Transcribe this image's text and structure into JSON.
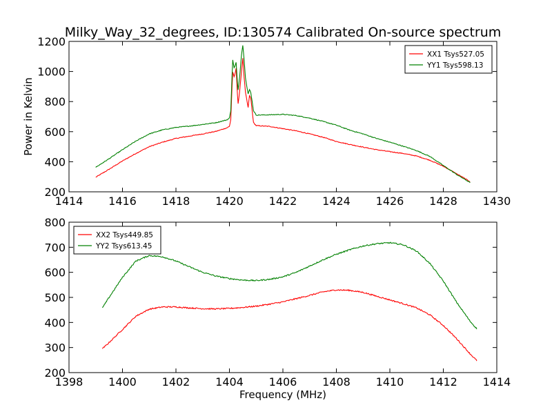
{
  "title": "Milky_Way_32_degrees, ID:130574 Calibrated On-source spectrum",
  "chart_data": [
    {
      "type": "line",
      "ylabel": "Power in Kelvin",
      "xlabel": "",
      "xlim": [
        1414,
        1430
      ],
      "ylim": [
        200,
        1200
      ],
      "xticks": [
        "1414",
        "1416",
        "1418",
        "1420",
        "1422",
        "1424",
        "1426",
        "1428",
        "1430"
      ],
      "yticks": [
        "200",
        "400",
        "600",
        "800",
        "1000",
        "1200"
      ],
      "legend_position": "upper-right",
      "series": [
        {
          "name": "XX1 Tsys527.05",
          "color": "#ff0000",
          "points": [
            [
              1415.0,
              297
            ],
            [
              1415.5,
              350
            ],
            [
              1416.0,
              405
            ],
            [
              1416.5,
              455
            ],
            [
              1417.0,
              500
            ],
            [
              1417.5,
              530
            ],
            [
              1418.0,
              555
            ],
            [
              1418.5,
              570
            ],
            [
              1419.0,
              585
            ],
            [
              1419.5,
              602
            ],
            [
              1419.9,
              625
            ],
            [
              1420.0,
              635
            ],
            [
              1420.05,
              680
            ],
            [
              1420.12,
              1000
            ],
            [
              1420.18,
              960
            ],
            [
              1420.25,
              1020
            ],
            [
              1420.32,
              780
            ],
            [
              1420.38,
              860
            ],
            [
              1420.45,
              1000
            ],
            [
              1420.5,
              1090
            ],
            [
              1420.55,
              960
            ],
            [
              1420.6,
              860
            ],
            [
              1420.65,
              810
            ],
            [
              1420.7,
              760
            ],
            [
              1420.75,
              840
            ],
            [
              1420.8,
              820
            ],
            [
              1420.85,
              740
            ],
            [
              1420.9,
              660
            ],
            [
              1421.0,
              640
            ],
            [
              1421.5,
              635
            ],
            [
              1422.0,
              620
            ],
            [
              1422.5,
              605
            ],
            [
              1423.0,
              585
            ],
            [
              1423.5,
              563
            ],
            [
              1424.0,
              535
            ],
            [
              1424.5,
              515
            ],
            [
              1425.0,
              497
            ],
            [
              1425.5,
              480
            ],
            [
              1426.0,
              467
            ],
            [
              1426.5,
              455
            ],
            [
              1427.0,
              438
            ],
            [
              1427.5,
              410
            ],
            [
              1428.0,
              370
            ],
            [
              1428.5,
              320
            ],
            [
              1429.0,
              268
            ]
          ]
        },
        {
          "name": "YY1 Tsys598.13",
          "color": "#008000",
          "points": [
            [
              1415.0,
              363
            ],
            [
              1415.5,
              420
            ],
            [
              1416.0,
              480
            ],
            [
              1416.5,
              537
            ],
            [
              1417.0,
              585
            ],
            [
              1417.5,
              612
            ],
            [
              1418.0,
              628
            ],
            [
              1418.5,
              637
            ],
            [
              1419.0,
              648
            ],
            [
              1419.5,
              660
            ],
            [
              1419.9,
              678
            ],
            [
              1420.0,
              690
            ],
            [
              1420.05,
              740
            ],
            [
              1420.12,
              1080
            ],
            [
              1420.18,
              1020
            ],
            [
              1420.25,
              1060
            ],
            [
              1420.32,
              870
            ],
            [
              1420.38,
              960
            ],
            [
              1420.45,
              1110
            ],
            [
              1420.5,
              1175
            ],
            [
              1420.55,
              1080
            ],
            [
              1420.6,
              960
            ],
            [
              1420.65,
              900
            ],
            [
              1420.7,
              850
            ],
            [
              1420.75,
              880
            ],
            [
              1420.8,
              860
            ],
            [
              1420.85,
              800
            ],
            [
              1420.9,
              740
            ],
            [
              1421.0,
              710
            ],
            [
              1421.5,
              712
            ],
            [
              1422.0,
              715
            ],
            [
              1422.5,
              707
            ],
            [
              1423.0,
              690
            ],
            [
              1423.5,
              668
            ],
            [
              1424.0,
              643
            ],
            [
              1424.5,
              610
            ],
            [
              1425.0,
              585
            ],
            [
              1425.5,
              555
            ],
            [
              1426.0,
              530
            ],
            [
              1426.5,
              503
            ],
            [
              1427.0,
              474
            ],
            [
              1427.5,
              435
            ],
            [
              1428.0,
              375
            ],
            [
              1428.5,
              315
            ],
            [
              1429.0,
              262
            ]
          ]
        }
      ]
    },
    {
      "type": "line",
      "ylabel": "",
      "xlabel": "Frequency (MHz)",
      "xlim": [
        1398,
        1414
      ],
      "ylim": [
        200,
        800
      ],
      "xticks": [
        "1398",
        "1400",
        "1402",
        "1404",
        "1406",
        "1408",
        "1410",
        "1412",
        "1414"
      ],
      "yticks": [
        "200",
        "300",
        "400",
        "500",
        "600",
        "700",
        "800"
      ],
      "legend_position": "upper-left",
      "series": [
        {
          "name": "XX2 Tsys449.85",
          "color": "#ff0000",
          "points": [
            [
              1399.25,
              295
            ],
            [
              1399.5,
              320
            ],
            [
              1400.0,
              372
            ],
            [
              1400.5,
              425
            ],
            [
              1401.0,
              453
            ],
            [
              1401.5,
              462
            ],
            [
              1402.0,
              462
            ],
            [
              1402.5,
              458
            ],
            [
              1403.0,
              455
            ],
            [
              1403.5,
              454
            ],
            [
              1404.0,
              456
            ],
            [
              1404.5,
              460
            ],
            [
              1405.0,
              465
            ],
            [
              1405.5,
              473
            ],
            [
              1406.0,
              482
            ],
            [
              1406.5,
              495
            ],
            [
              1407.0,
              508
            ],
            [
              1407.5,
              522
            ],
            [
              1408.0,
              530
            ],
            [
              1408.5,
              528
            ],
            [
              1409.0,
              520
            ],
            [
              1409.5,
              505
            ],
            [
              1410.0,
              490
            ],
            [
              1410.5,
              475
            ],
            [
              1411.0,
              458
            ],
            [
              1411.5,
              430
            ],
            [
              1412.0,
              388
            ],
            [
              1412.5,
              335
            ],
            [
              1413.0,
              275
            ],
            [
              1413.25,
              248
            ]
          ]
        },
        {
          "name": "YY2 Tsys613.45",
          "color": "#008000",
          "points": [
            [
              1399.25,
              458
            ],
            [
              1399.5,
              500
            ],
            [
              1400.0,
              580
            ],
            [
              1400.5,
              645
            ],
            [
              1401.0,
              667
            ],
            [
              1401.5,
              662
            ],
            [
              1402.0,
              645
            ],
            [
              1402.5,
              622
            ],
            [
              1403.0,
              600
            ],
            [
              1403.5,
              585
            ],
            [
              1404.0,
              575
            ],
            [
              1404.5,
              569
            ],
            [
              1405.0,
              567
            ],
            [
              1405.5,
              572
            ],
            [
              1406.0,
              582
            ],
            [
              1406.5,
              600
            ],
            [
              1407.0,
              625
            ],
            [
              1407.5,
              650
            ],
            [
              1408.0,
              672
            ],
            [
              1408.5,
              690
            ],
            [
              1409.0,
              705
            ],
            [
              1409.5,
              714
            ],
            [
              1410.0,
              718
            ],
            [
              1410.5,
              710
            ],
            [
              1411.0,
              685
            ],
            [
              1411.5,
              635
            ],
            [
              1412.0,
              565
            ],
            [
              1412.5,
              480
            ],
            [
              1413.0,
              405
            ],
            [
              1413.25,
              375
            ]
          ]
        }
      ]
    }
  ]
}
